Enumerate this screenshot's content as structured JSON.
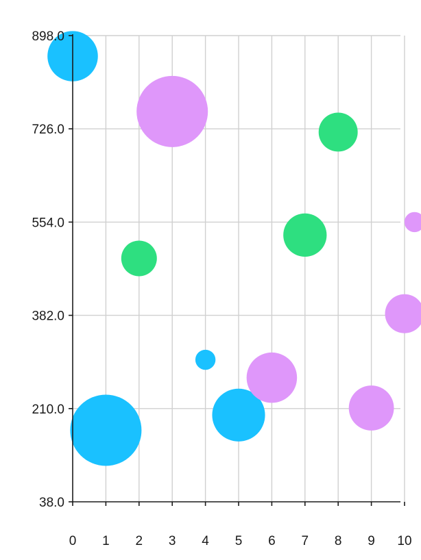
{
  "chart_data": {
    "type": "scatter",
    "subtype": "bubble",
    "title": "",
    "xlabel": "",
    "ylabel": "",
    "xlim": [
      0,
      10
    ],
    "ylim": [
      38,
      898
    ],
    "x_ticks": [
      "0",
      "1",
      "2",
      "3",
      "4",
      "5",
      "6",
      "7",
      "8",
      "9",
      "10"
    ],
    "y_ticks": [
      "38.0",
      "210.0",
      "382.0",
      "554.0",
      "726.0",
      "898.0"
    ],
    "grid": true,
    "legend": "none",
    "series": [
      {
        "color": "#1ac1ff",
        "points": [
          {
            "x": 0,
            "y": 860,
            "size": 50
          },
          {
            "x": 1,
            "y": 170,
            "size": 100
          },
          {
            "x": 4,
            "y": 300,
            "size": 8
          },
          {
            "x": 5,
            "y": 198,
            "size": 55
          }
        ]
      },
      {
        "color": "#df97fa",
        "points": [
          {
            "x": 3,
            "y": 758,
            "size": 100
          },
          {
            "x": 6,
            "y": 267,
            "size": 50
          },
          {
            "x": 9,
            "y": 211,
            "size": 40
          },
          {
            "x": 10,
            "y": 385,
            "size": 30
          },
          {
            "x": 10.3,
            "y": 554,
            "size": 8
          }
        ]
      },
      {
        "color": "#2edf80",
        "points": [
          {
            "x": 2,
            "y": 487,
            "size": 25
          },
          {
            "x": 7,
            "y": 530,
            "size": 37
          },
          {
            "x": 8,
            "y": 720,
            "size": 30
          }
        ]
      }
    ]
  }
}
